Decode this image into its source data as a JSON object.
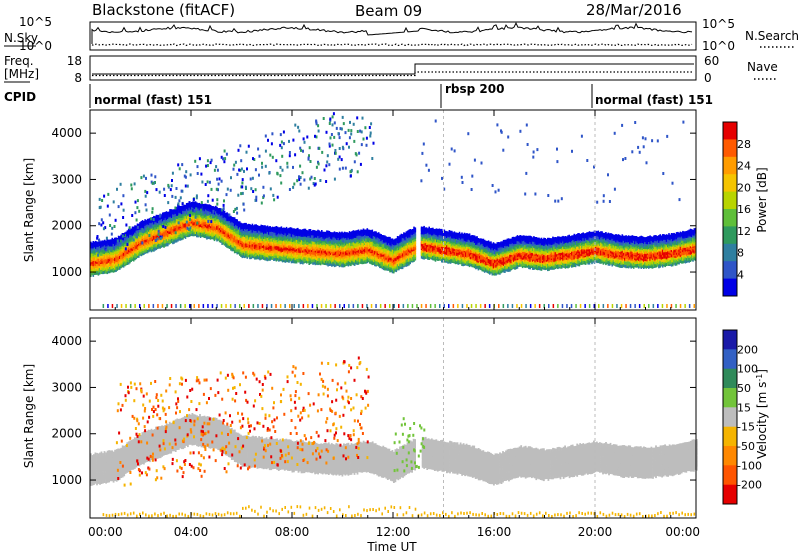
{
  "header": {
    "station": "Blackstone (fitACF)",
    "beam": "Beam 09",
    "date": "28/Mar/2016"
  },
  "strip_nsky": {
    "left_label": "N.Sky",
    "right_label": "N.Search",
    "left_ticks": [
      "10^5",
      "10^0"
    ],
    "right_ticks": [
      "10^5",
      "10^0"
    ]
  },
  "strip_freq": {
    "left_label_1": "Freq.",
    "left_label_2": "[MHz]",
    "right_label": "Nave",
    "left_ticks": [
      "18",
      "8"
    ],
    "right_ticks": [
      "60",
      "0"
    ]
  },
  "cpid": {
    "label": "CPID",
    "segments": [
      {
        "label": "normal (fast) 151",
        "start_hour": 0
      },
      {
        "label": "rbsp 200",
        "start_hour": 14
      },
      {
        "label": "normal (fast) 151",
        "start_hour": 20
      }
    ]
  },
  "chart_data": [
    {
      "type": "heatmap",
      "name": "power",
      "ylabel": "Slant Range [km]",
      "yticks": [
        "4000",
        "3000",
        "2000",
        "1000"
      ],
      "ytick_values": [
        4000,
        3000,
        2000,
        1000
      ],
      "ylim": [
        180,
        4500
      ],
      "xlim_hours": [
        0,
        24
      ],
      "colorbar_label": "Power [dB]",
      "colorbar_ticks": [
        "28",
        "24",
        "20",
        "16",
        "12",
        "8",
        "4"
      ],
      "colorbar_colors": [
        "#e60000",
        "#ff5a00",
        "#ff9c00",
        "#f5c400",
        "#b8d400",
        "#5fbf3a",
        "#2f9a5e",
        "#2f7fa0",
        "#2f55c8",
        "#0000e6"
      ],
      "echo_band_center_km": [
        [
          0,
          1170
        ],
        [
          1,
          1260
        ],
        [
          2,
          1620
        ],
        [
          3,
          1830
        ],
        [
          4,
          2050
        ],
        [
          5,
          1940
        ],
        [
          6,
          1580
        ],
        [
          7,
          1520
        ],
        [
          8,
          1470
        ],
        [
          9,
          1420
        ],
        [
          10,
          1380
        ],
        [
          11,
          1460
        ],
        [
          12,
          1240
        ],
        [
          13,
          1550
        ],
        [
          14,
          1460
        ],
        [
          15,
          1370
        ],
        [
          16,
          1170
        ],
        [
          17,
          1350
        ],
        [
          18,
          1280
        ],
        [
          19,
          1350
        ],
        [
          20,
          1450
        ],
        [
          21,
          1350
        ],
        [
          22,
          1320
        ],
        [
          23,
          1380
        ],
        [
          24,
          1500
        ]
      ]
    },
    {
      "type": "heatmap",
      "name": "velocity",
      "ylabel": "Slant Range [km]",
      "yticks": [
        "4000",
        "3000",
        "2000",
        "1000"
      ],
      "ytick_values": [
        4000,
        3000,
        2000,
        1000
      ],
      "ylim": [
        180,
        4500
      ],
      "xlim_hours": [
        0,
        24
      ],
      "colorbar_label": "Velocity [m s",
      "colorbar_exp": "-1",
      "colorbar_close": "]",
      "colorbar_ticks": [
        "200",
        "100",
        "50",
        "15",
        "-15",
        "-50",
        "-100",
        "-200"
      ],
      "colorbar_colors": [
        "#1a1aa8",
        "#3260c4",
        "#2f8a5a",
        "#72c43a",
        "#bdbdbd",
        "#f5b400",
        "#ff8800",
        "#ff5500",
        "#e60000"
      ],
      "ground_scatter_color": "#bdbdbd"
    }
  ],
  "xaxis": {
    "label": "Time UT",
    "ticks": [
      "00:00",
      "04:00",
      "08:00",
      "12:00",
      "16:00",
      "20:00",
      "00:00"
    ],
    "tick_hours": [
      0,
      4,
      8,
      12,
      16,
      20,
      24
    ]
  }
}
